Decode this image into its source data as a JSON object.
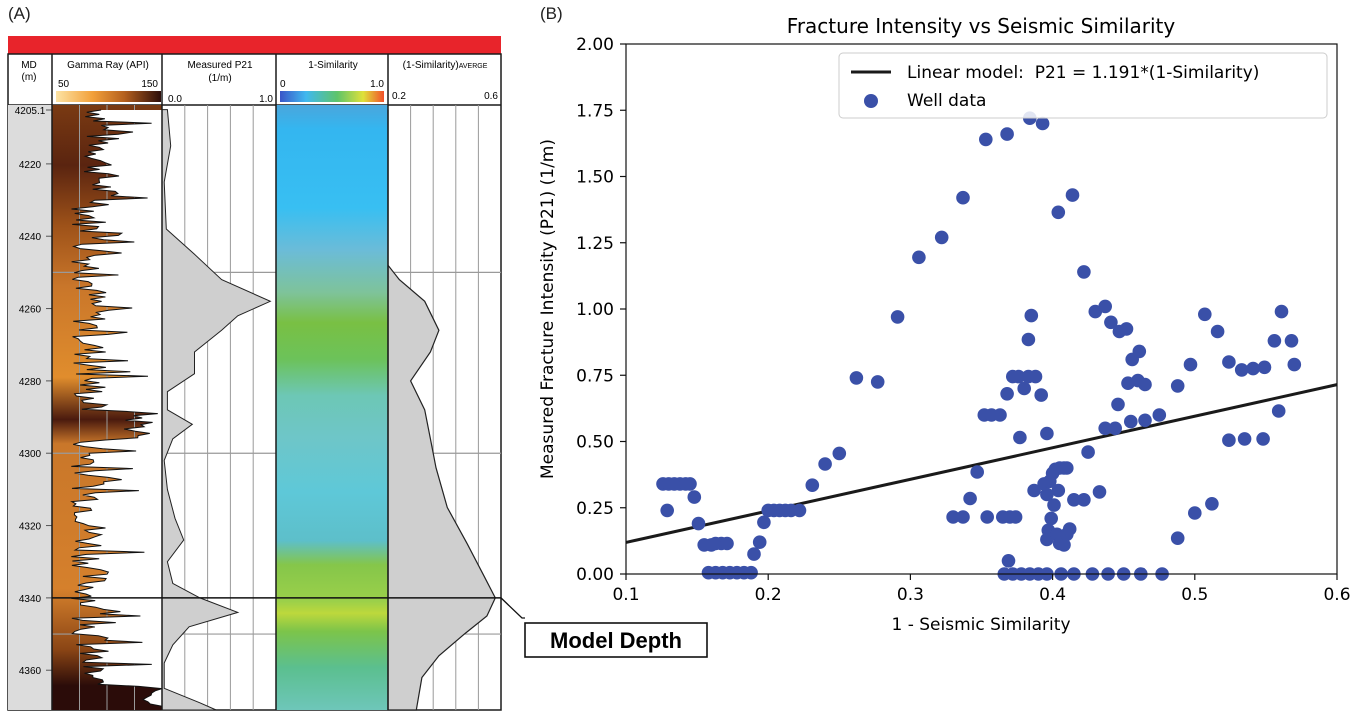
{
  "panel_a": {
    "label": "(A)",
    "header_color": "#e8242b",
    "tracks": {
      "md": {
        "title1": "MD",
        "title2": "(m)"
      },
      "gamma": {
        "title": "Gamma Ray (API)",
        "min": "50",
        "max": "150"
      },
      "p21": {
        "title1": "Measured P21",
        "title2": "(1/m)",
        "min": "0.0",
        "max": "1.0"
      },
      "sim": {
        "title": "1-Similarity",
        "min": "0",
        "max": "1.0"
      },
      "avg": {
        "title_main": "(1-Similarity)",
        "title_sub": "AVERGE",
        "min": "0.2",
        "max": "0.6"
      }
    },
    "depth_labels": [
      "4205.1",
      "4220",
      "4240",
      "4260",
      "4280",
      "4300",
      "4320",
      "4340",
      "4360"
    ],
    "depth_values": [
      4205.1,
      4220,
      4240,
      4260,
      4280,
      4300,
      4320,
      4340,
      4360
    ],
    "model_depth_label": "Model Depth",
    "model_depth_value": 4340
  },
  "panel_b": {
    "label": "(B)"
  },
  "chart_data": {
    "type": "scatter",
    "title": "Fracture Intensity vs Seismic Similarity",
    "xlabel": "1 - Seismic Similarity",
    "ylabel": "Measured Fracture Intensity (P21) (1/m)",
    "xlim": [
      0.1,
      0.6
    ],
    "ylim": [
      0.0,
      2.0
    ],
    "xticks": [
      "0.1",
      "0.2",
      "0.3",
      "0.4",
      "0.5",
      "0.6"
    ],
    "yticks": [
      "0.00",
      "0.25",
      "0.50",
      "0.75",
      "1.00",
      "1.25",
      "1.50",
      "1.75",
      "2.00"
    ],
    "legend_position": "top-right",
    "series": [
      {
        "name": "Linear model:  P21 = 1.191*(1-Similarity)",
        "kind": "line",
        "color": "#1a1a1a",
        "slope": 1.191
      },
      {
        "name": "Well data",
        "kind": "scatter",
        "color": "#3a50a8",
        "points": [
          [
            0.126,
            0.34
          ],
          [
            0.13,
            0.34
          ],
          [
            0.134,
            0.34
          ],
          [
            0.138,
            0.34
          ],
          [
            0.142,
            0.34
          ],
          [
            0.145,
            0.34
          ],
          [
            0.129,
            0.24
          ],
          [
            0.148,
            0.29
          ],
          [
            0.151,
            0.19
          ],
          [
            0.155,
            0.11
          ],
          [
            0.16,
            0.11
          ],
          [
            0.163,
            0.115
          ],
          [
            0.167,
            0.115
          ],
          [
            0.171,
            0.115
          ],
          [
            0.158,
            0.005
          ],
          [
            0.163,
            0.005
          ],
          [
            0.168,
            0.005
          ],
          [
            0.173,
            0.005
          ],
          [
            0.178,
            0.005
          ],
          [
            0.183,
            0.005
          ],
          [
            0.188,
            0.005
          ],
          [
            0.19,
            0.075
          ],
          [
            0.194,
            0.12
          ],
          [
            0.197,
            0.195
          ],
          [
            0.2,
            0.24
          ],
          [
            0.204,
            0.24
          ],
          [
            0.208,
            0.24
          ],
          [
            0.212,
            0.24
          ],
          [
            0.216,
            0.24
          ],
          [
            0.222,
            0.24
          ],
          [
            0.231,
            0.335
          ],
          [
            0.24,
            0.415
          ],
          [
            0.25,
            0.455
          ],
          [
            0.262,
            0.74
          ],
          [
            0.277,
            0.725
          ],
          [
            0.291,
            0.97
          ],
          [
            0.306,
            1.195
          ],
          [
            0.322,
            1.27
          ],
          [
            0.337,
            1.42
          ],
          [
            0.353,
            1.64
          ],
          [
            0.368,
            1.66
          ],
          [
            0.384,
            1.72
          ],
          [
            0.393,
            1.7
          ],
          [
            0.404,
            1.365
          ],
          [
            0.414,
            1.43
          ],
          [
            0.422,
            1.14
          ],
          [
            0.33,
            0.215
          ],
          [
            0.337,
            0.215
          ],
          [
            0.342,
            0.285
          ],
          [
            0.347,
            0.385
          ],
          [
            0.352,
            0.6
          ],
          [
            0.357,
            0.6
          ],
          [
            0.363,
            0.6
          ],
          [
            0.354,
            0.215
          ],
          [
            0.365,
            0.215
          ],
          [
            0.369,
            0.05
          ],
          [
            0.37,
            0.215
          ],
          [
            0.374,
            0.215
          ],
          [
            0.368,
            0.68
          ],
          [
            0.372,
            0.745
          ],
          [
            0.376,
            0.745
          ],
          [
            0.38,
            0.7
          ],
          [
            0.383,
            0.745
          ],
          [
            0.388,
            0.745
          ],
          [
            0.392,
            0.675
          ],
          [
            0.377,
            0.515
          ],
          [
            0.383,
            0.885
          ],
          [
            0.385,
            0.975
          ],
          [
            0.387,
            0.315
          ],
          [
            0.396,
            0.53
          ],
          [
            0.394,
            0.34
          ],
          [
            0.396,
            0.13
          ],
          [
            0.397,
            0.165
          ],
          [
            0.399,
            0.21
          ],
          [
            0.401,
            0.26
          ],
          [
            0.403,
            0.15
          ],
          [
            0.405,
            0.115
          ],
          [
            0.408,
            0.11
          ],
          [
            0.41,
            0.15
          ],
          [
            0.412,
            0.17
          ],
          [
            0.398,
            0.35
          ],
          [
            0.4,
            0.38
          ],
          [
            0.402,
            0.395
          ],
          [
            0.405,
            0.4
          ],
          [
            0.408,
            0.4
          ],
          [
            0.41,
            0.4
          ],
          [
            0.396,
            0.3
          ],
          [
            0.404,
            0.315
          ],
          [
            0.415,
            0.28
          ],
          [
            0.422,
            0.28
          ],
          [
            0.425,
            0.46
          ],
          [
            0.433,
            0.31
          ],
          [
            0.43,
            0.99
          ],
          [
            0.437,
            1.01
          ],
          [
            0.441,
            0.95
          ],
          [
            0.447,
            0.915
          ],
          [
            0.452,
            0.925
          ],
          [
            0.456,
            0.81
          ],
          [
            0.461,
            0.84
          ],
          [
            0.437,
            0.55
          ],
          [
            0.444,
            0.55
          ],
          [
            0.446,
            0.64
          ],
          [
            0.453,
            0.72
          ],
          [
            0.46,
            0.73
          ],
          [
            0.465,
            0.715
          ],
          [
            0.455,
            0.575
          ],
          [
            0.465,
            0.58
          ],
          [
            0.475,
            0.6
          ],
          [
            0.488,
            0.71
          ],
          [
            0.497,
            0.79
          ],
          [
            0.507,
            0.98
          ],
          [
            0.516,
            0.915
          ],
          [
            0.524,
            0.8
          ],
          [
            0.533,
            0.77
          ],
          [
            0.541,
            0.775
          ],
          [
            0.549,
            0.78
          ],
          [
            0.556,
            0.88
          ],
          [
            0.561,
            0.99
          ],
          [
            0.568,
            0.88
          ],
          [
            0.57,
            0.79
          ],
          [
            0.559,
            0.615
          ],
          [
            0.535,
            0.51
          ],
          [
            0.524,
            0.505
          ],
          [
            0.548,
            0.51
          ],
          [
            0.5,
            0.23
          ],
          [
            0.512,
            0.265
          ],
          [
            0.488,
            0.135
          ],
          [
            0.366,
            0.0
          ],
          [
            0.372,
            0.0
          ],
          [
            0.378,
            0.0
          ],
          [
            0.384,
            0.0
          ],
          [
            0.39,
            0.0
          ],
          [
            0.396,
            0.0
          ],
          [
            0.406,
            0.0
          ],
          [
            0.415,
            0.0
          ],
          [
            0.428,
            0.0
          ],
          [
            0.439,
            0.0
          ],
          [
            0.45,
            0.0
          ],
          [
            0.462,
            0.0
          ],
          [
            0.477,
            0.0
          ]
        ]
      }
    ]
  }
}
